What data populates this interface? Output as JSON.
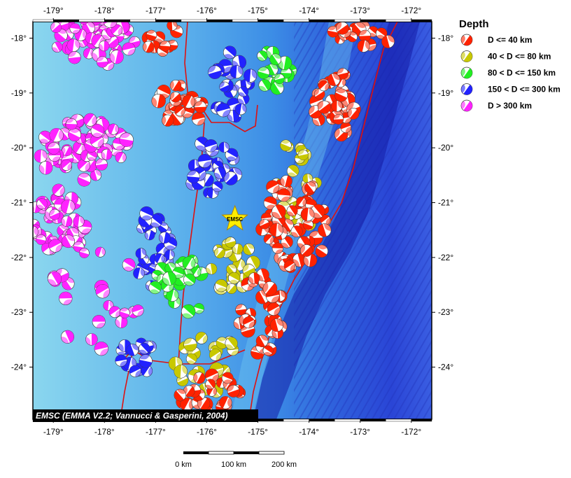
{
  "map": {
    "lon_range": [
      -179.4,
      -171.6
    ],
    "lat_range": [
      -17.7,
      -24.95
    ],
    "lon_ticks": [
      -179,
      -178,
      -177,
      -176,
      -175,
      -174,
      -173,
      -172
    ],
    "lat_ticks": [
      -18,
      -19,
      -20,
      -21,
      -22,
      -23,
      -24
    ],
    "lon_labels": [
      "-179°",
      "-178°",
      "-177°",
      "-176°",
      "-175°",
      "-174°",
      "-173°",
      "-172°"
    ],
    "lat_labels": [
      "-18°",
      "-19°",
      "-20°",
      "-21°",
      "-22°",
      "-23°",
      "-24°"
    ],
    "credit": "EMSC (EMMA V2.2; Vannucci & Gasperini, 2004)",
    "star_label": "EMSC",
    "star_position": {
      "lon": -175.45,
      "lat": -21.3
    }
  },
  "legend": {
    "title": "Depth",
    "items": [
      {
        "label": "D <= 40 km",
        "color": "#ff2200"
      },
      {
        "label": "40 < D <= 80 km",
        "color": "#c8c800"
      },
      {
        "label": "80 < D <= 150 km",
        "color": "#22ee22"
      },
      {
        "label": "150 < D <= 300 km",
        "color": "#2222ff"
      },
      {
        "label": "D > 300 km",
        "color": "#ff22ff"
      }
    ]
  },
  "scale_bar": {
    "labels": [
      "0 km",
      "100 km",
      "200 km"
    ]
  },
  "colors": {
    "ocean_shallow": "#7ad2ee",
    "ocean_mid": "#3d8ee6",
    "ocean_deep": "#2a3fd8",
    "trench": "#121aa8",
    "plate_boundary": "#dd1111",
    "star": "#ffee00"
  }
}
